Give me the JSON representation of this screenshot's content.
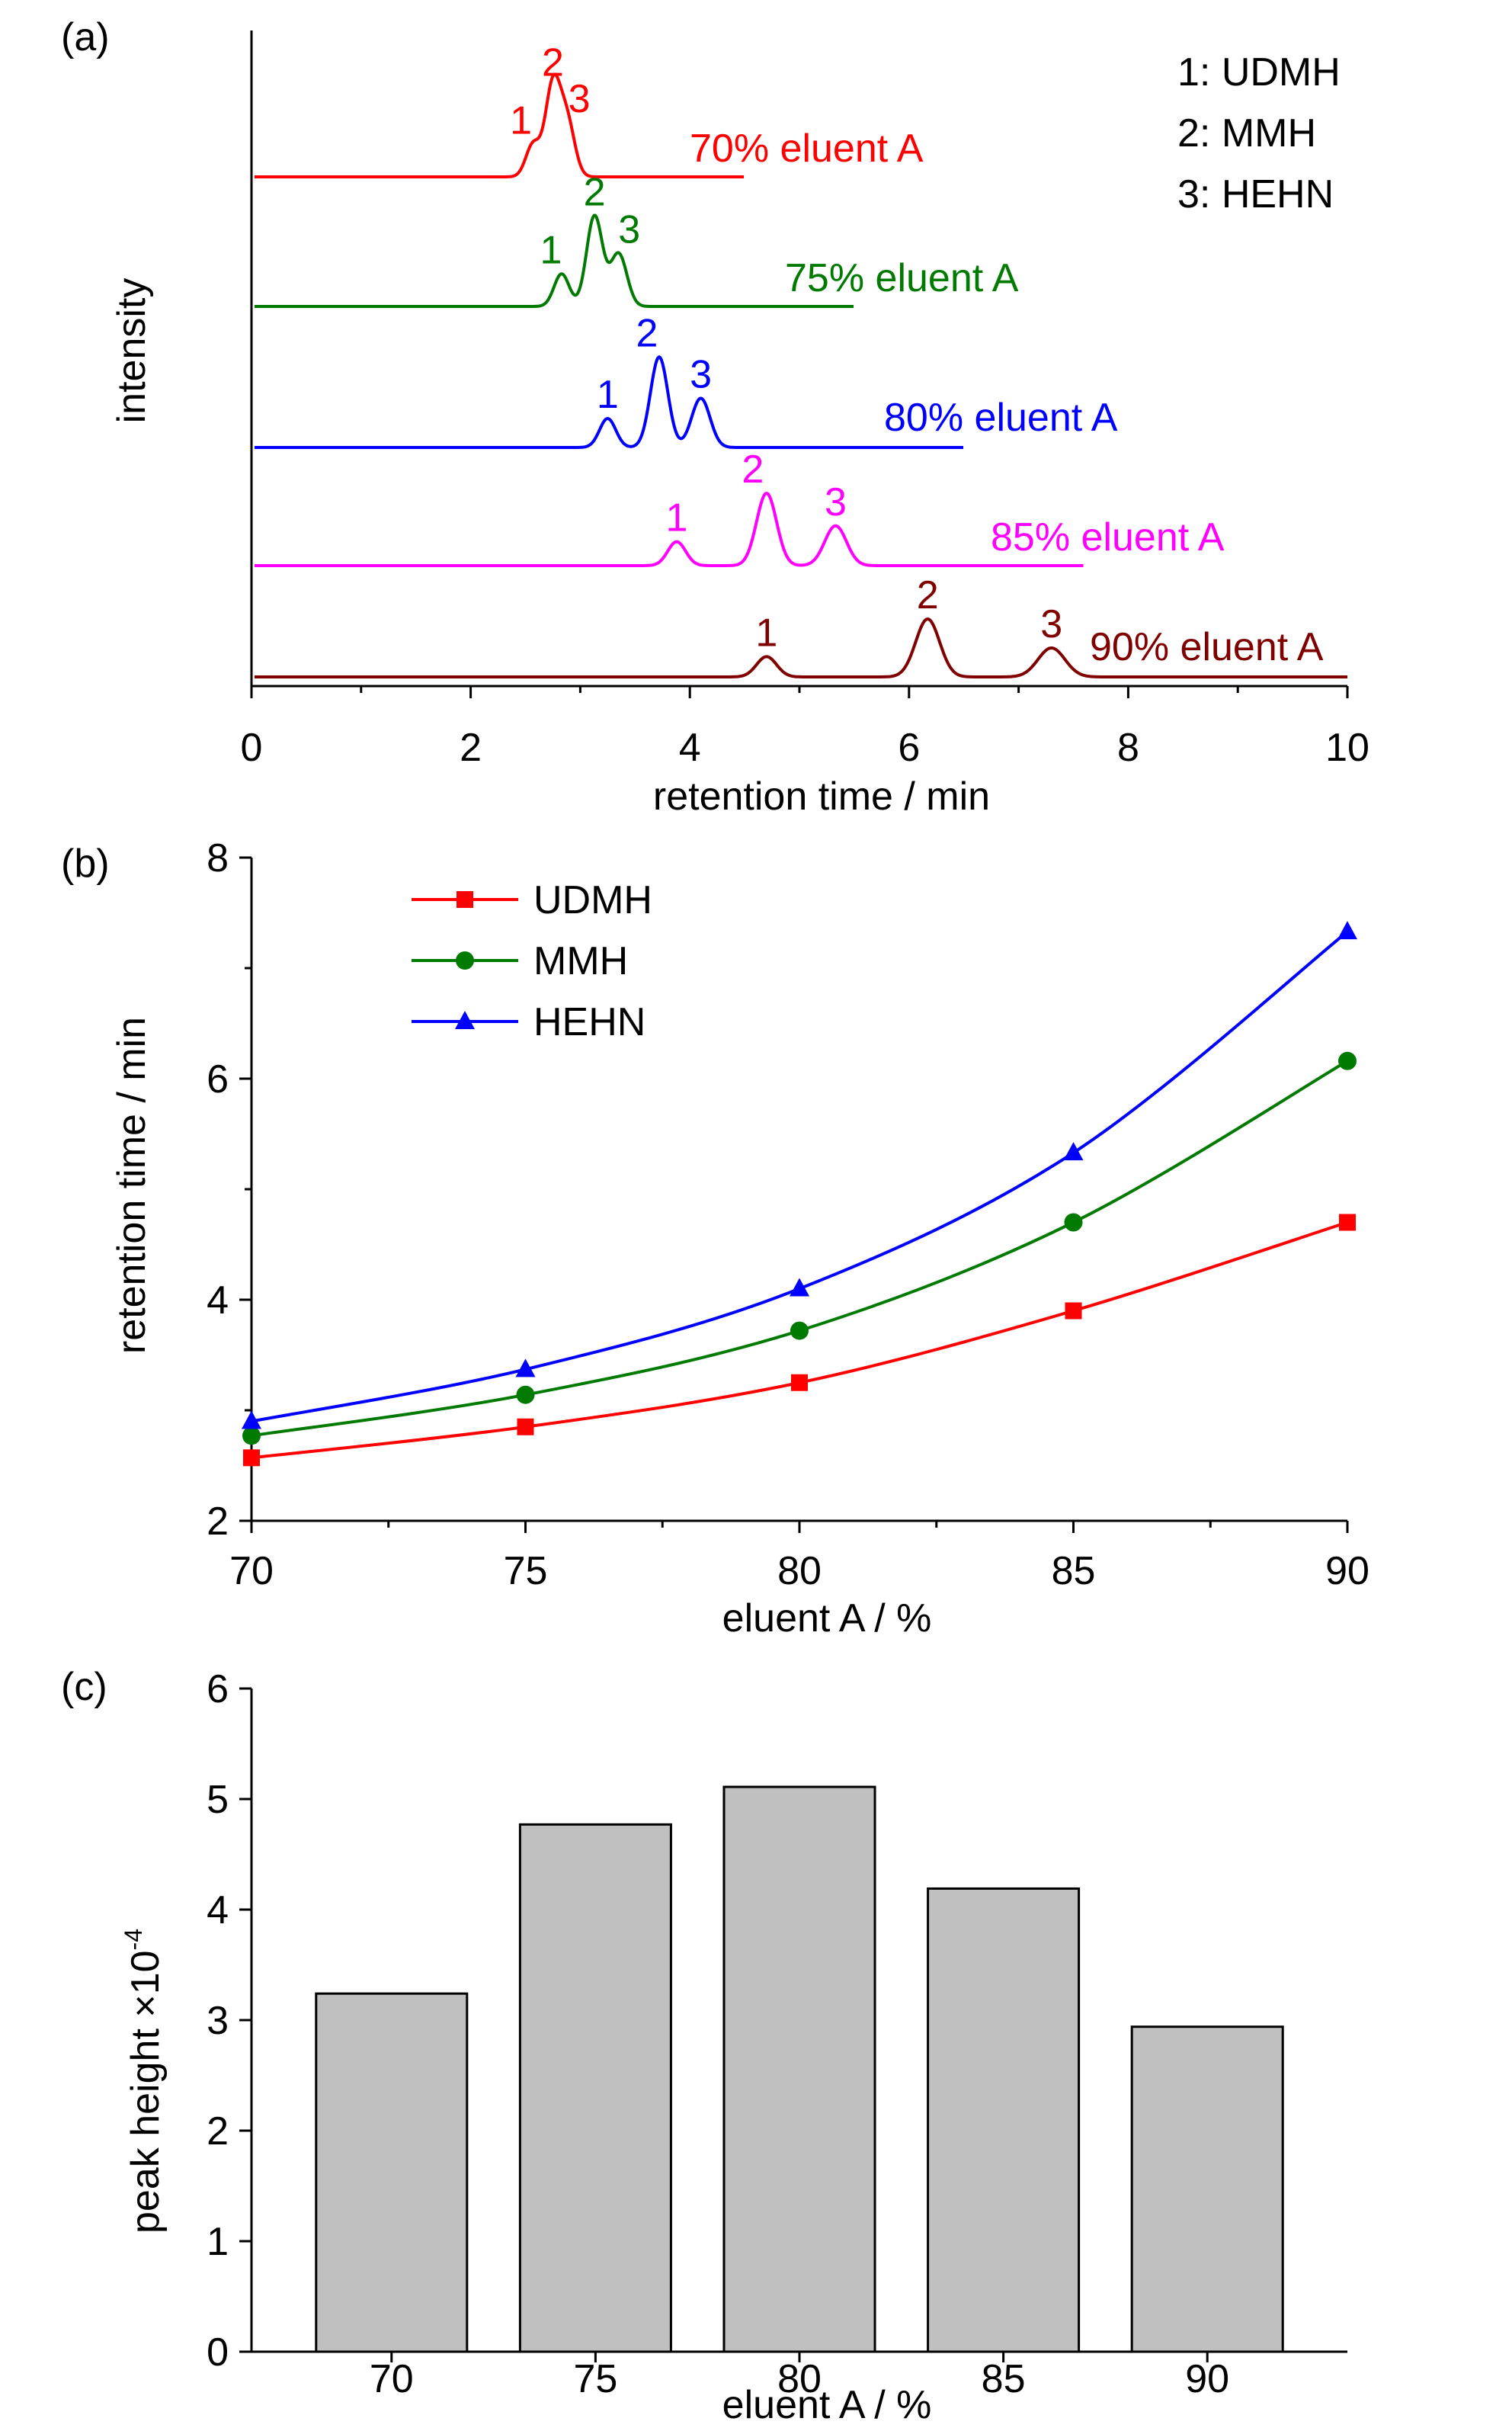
{
  "chart_data": [
    {
      "panel_label": "(a)",
      "type": "line",
      "xlabel": "retention time / min",
      "ylabel": "intensity",
      "xlim": [
        0,
        10
      ],
      "xticks": [
        "0",
        "2",
        "4",
        "6",
        "8",
        "10"
      ],
      "legend": [
        "1: UDMH",
        "2: MMH",
        "3: HEHN"
      ],
      "legend_placement": "top-right",
      "series": [
        {
          "name": "70% eluent A",
          "color": "#ff0000",
          "x_end": 4.5,
          "peaks": [
            {
              "label": "1",
              "t": 2.57,
              "h": 0.45
            },
            {
              "label": "2",
              "t": 2.75,
              "h": 1.25
            },
            {
              "label": "3",
              "t": 2.88,
              "h": 0.75
            }
          ]
        },
        {
          "name": "75% eluent A",
          "color": "#007a00",
          "x_end": 5.5,
          "peaks": [
            {
              "label": "1",
              "t": 2.83,
              "h": 0.45
            },
            {
              "label": "2",
              "t": 3.13,
              "h": 1.25
            },
            {
              "label": "3",
              "t": 3.35,
              "h": 0.73
            }
          ]
        },
        {
          "name": "80% eluent A",
          "color": "#0000ff",
          "x_end": 6.5,
          "peaks": [
            {
              "label": "1",
              "t": 3.25,
              "h": 0.4
            },
            {
              "label": "2",
              "t": 3.72,
              "h": 1.25
            },
            {
              "label": "3",
              "t": 4.1,
              "h": 0.68
            }
          ]
        },
        {
          "name": "85% eluent A",
          "color": "#ff00ff",
          "x_end": 7.6,
          "peaks": [
            {
              "label": "1",
              "t": 3.88,
              "h": 0.33
            },
            {
              "label": "2",
              "t": 4.7,
              "h": 1.0
            },
            {
              "label": "3",
              "t": 5.33,
              "h": 0.55
            }
          ]
        },
        {
          "name": "90% eluent A",
          "color": "#800000",
          "x_end": 10,
          "peaks": [
            {
              "label": "1",
              "t": 4.7,
              "h": 0.28
            },
            {
              "label": "2",
              "t": 6.17,
              "h": 0.8
            },
            {
              "label": "3",
              "t": 7.3,
              "h": 0.4
            }
          ]
        }
      ]
    },
    {
      "panel_label": "(b)",
      "type": "line",
      "xlabel": "eluent A / %",
      "ylabel": "retention time / min",
      "xlim": [
        70,
        90
      ],
      "ylim": [
        2,
        8
      ],
      "xticks": [
        "70",
        "75",
        "80",
        "85",
        "90"
      ],
      "yticks": [
        "2",
        "4",
        "6",
        "8"
      ],
      "legend_placement": "top-left",
      "x": [
        70,
        75,
        80,
        85,
        90
      ],
      "series": [
        {
          "name": "UDMH",
          "color": "#ff0000",
          "marker": "square",
          "values": [
            2.57,
            2.85,
            3.25,
            3.9,
            4.7
          ]
        },
        {
          "name": "MMH",
          "color": "#007a00",
          "marker": "circle",
          "values": [
            2.77,
            3.14,
            3.72,
            4.7,
            6.16
          ]
        },
        {
          "name": "HEHN",
          "color": "#0000ff",
          "marker": "triangle",
          "values": [
            2.9,
            3.37,
            4.1,
            5.33,
            7.33
          ]
        }
      ]
    },
    {
      "panel_label": "(c)",
      "type": "bar",
      "xlabel": "eluent A / %",
      "ylabel": "peak height ×10",
      "ylabel_exponent": "-4",
      "ylim": [
        0,
        6
      ],
      "yticks": [
        "0",
        "1",
        "2",
        "3",
        "4",
        "5",
        "6"
      ],
      "categories": [
        "70",
        "75",
        "80",
        "85",
        "90"
      ],
      "values": [
        3.24,
        4.77,
        5.11,
        4.19,
        2.94
      ],
      "bar_color": "#c0c0c0"
    }
  ]
}
